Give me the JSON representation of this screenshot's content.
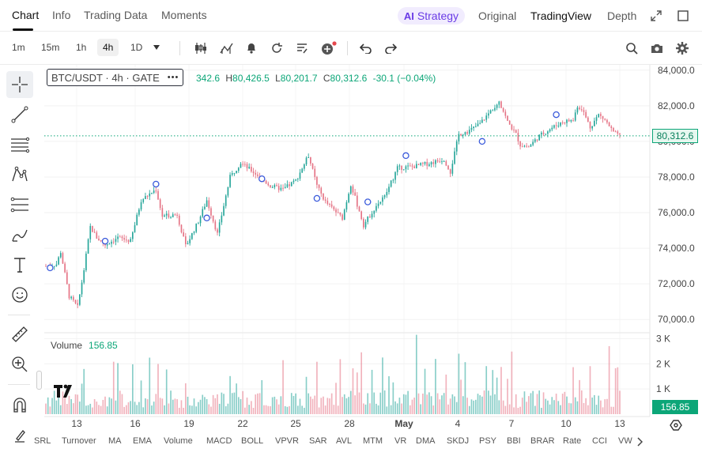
{
  "tabs": [
    {
      "label": "Chart",
      "active": true
    },
    {
      "label": "Info",
      "active": false
    },
    {
      "label": "Trading Data",
      "active": false
    },
    {
      "label": "Moments",
      "active": false
    }
  ],
  "right_tabs": {
    "strategy_ai": "AI",
    "strategy": "Strategy",
    "original": "Original",
    "tradingview": "TradingView",
    "depth": "Depth"
  },
  "intervals": [
    "1m",
    "15m",
    "1h",
    "4h",
    "1D"
  ],
  "active_interval": "4h",
  "symbol": {
    "label": "BTC/USDT · 4h · GATE",
    "more": "•••"
  },
  "ohlc": {
    "open_tail": "342.6",
    "h_key": "H",
    "high": "80,426.5",
    "l_key": "L",
    "low": "80,201.7",
    "c_key": "C",
    "close": "80,312.6",
    "change": "-30.1 (−0.04%)"
  },
  "volume": {
    "label": "Volume",
    "value": "156.85"
  },
  "price_tag": "80,312.6",
  "volume_tag": "156.85",
  "colors": {
    "up": "#26a69a",
    "down": "#e57385",
    "accent": "#0ca678",
    "strategy": "#6a3ce6"
  },
  "chart_data": {
    "type": "candlestick",
    "y_ticks": [
      "84,000.0",
      "82,000.0",
      "80,000.0",
      "78,000.0",
      "76,000.0",
      "74,000.0",
      "72,000.0",
      "70,000.0"
    ],
    "y_values": [
      84000,
      82000,
      80000,
      78000,
      76000,
      74000,
      72000,
      70000
    ],
    "ylim": [
      69300,
      84300
    ],
    "x_ticks": [
      "13",
      "16",
      "19",
      "22",
      "25",
      "28",
      "May",
      "4",
      "7",
      "10",
      "13"
    ],
    "volume_ticks": [
      "3 K",
      "2 K",
      "1 K"
    ],
    "volume_values": [
      3000,
      2000,
      1000
    ],
    "volume_max": 3200,
    "last_price": 80312.6,
    "anchors": [
      [
        0,
        73000
      ],
      [
        5,
        73100
      ],
      [
        7,
        73800
      ],
      [
        11,
        71300
      ],
      [
        15,
        70700
      ],
      [
        18,
        72800
      ],
      [
        21,
        75200
      ],
      [
        24,
        74600
      ],
      [
        28,
        74200
      ],
      [
        34,
        74600
      ],
      [
        40,
        74400
      ],
      [
        45,
        76700
      ],
      [
        52,
        77300
      ],
      [
        55,
        75800
      ],
      [
        62,
        75900
      ],
      [
        66,
        74100
      ],
      [
        72,
        75500
      ],
      [
        76,
        76700
      ],
      [
        81,
        74800
      ],
      [
        87,
        78000
      ],
      [
        92,
        78800
      ],
      [
        100,
        78100
      ],
      [
        106,
        77500
      ],
      [
        112,
        77300
      ],
      [
        118,
        77800
      ],
      [
        124,
        79200
      ],
      [
        128,
        77500
      ],
      [
        132,
        76600
      ],
      [
        140,
        75700
      ],
      [
        144,
        77600
      ],
      [
        150,
        75300
      ],
      [
        156,
        76400
      ],
      [
        160,
        76900
      ],
      [
        166,
        78500
      ],
      [
        174,
        78600
      ],
      [
        182,
        78800
      ],
      [
        188,
        79000
      ],
      [
        191,
        78300
      ],
      [
        195,
        80400
      ],
      [
        200,
        80600
      ],
      [
        205,
        81000
      ],
      [
        210,
        81700
      ],
      [
        214,
        82300
      ],
      [
        218,
        81100
      ],
      [
        222,
        80400
      ],
      [
        224,
        79800
      ],
      [
        228,
        79700
      ],
      [
        233,
        80300
      ],
      [
        238,
        80700
      ],
      [
        244,
        81100
      ],
      [
        249,
        81200
      ],
      [
        251,
        82000
      ],
      [
        254,
        81600
      ],
      [
        257,
        80800
      ],
      [
        261,
        81500
      ],
      [
        264,
        81200
      ],
      [
        268,
        80500
      ],
      [
        271,
        80300
      ]
    ],
    "markers": [
      [
        2,
        72900
      ],
      [
        28,
        74400
      ],
      [
        52,
        77600
      ],
      [
        76,
        75700
      ],
      [
        102,
        77900
      ],
      [
        128,
        76800
      ],
      [
        152,
        76600
      ],
      [
        170,
        79200
      ],
      [
        206,
        80000
      ],
      [
        241,
        81500
      ]
    ]
  },
  "indicators": [
    "SRL",
    "Turnover",
    "MA",
    "EMA",
    "Volume",
    "MACD",
    "BOLL",
    "VPVR",
    "SAR",
    "AVL",
    "MTM",
    "VR",
    "DMA",
    "SKDJ",
    "PSY",
    "BBI",
    "BRAR",
    "Rate",
    "CCI",
    "VW"
  ],
  "icons": {
    "expand": "expand-icon",
    "fullscreen": "fullscreen-icon",
    "undo": "undo-icon",
    "redo": "redo-icon",
    "search": "search-icon",
    "camera": "camera-icon",
    "settings": "gear-icon"
  }
}
